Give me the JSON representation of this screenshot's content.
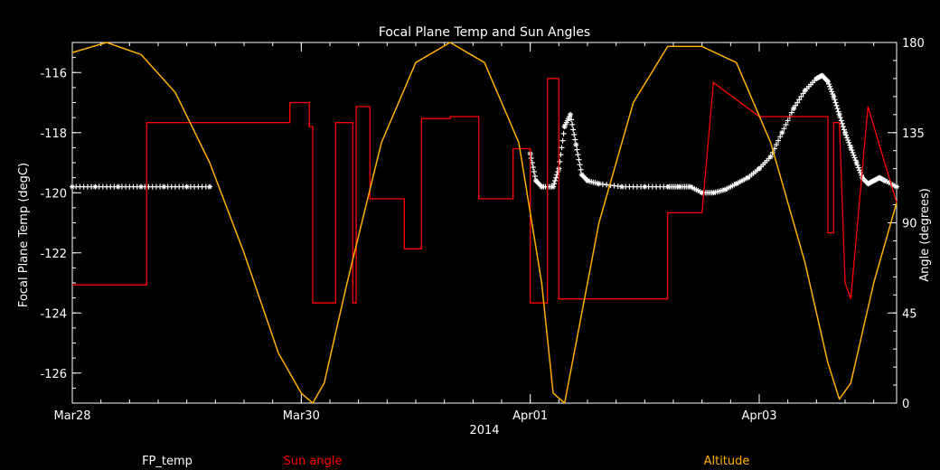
{
  "chart_data": {
    "type": "line",
    "title": "Focal Plane Temp and Sun Angles",
    "xlabel": "2014",
    "x_ticks": [
      "Mar28",
      "Mar30",
      "Apr01",
      "Apr03"
    ],
    "ylabel_left": "Focal Plane Temp (degC)",
    "ylabel_right": "Angle (degrees)",
    "x_range_days": [
      0,
      7.2
    ],
    "ylim_left": [
      -127,
      -115
    ],
    "ylim_right": [
      0,
      180
    ],
    "yticks_left": [
      "-116",
      "-118",
      "-120",
      "-122",
      "-124",
      "-126"
    ],
    "yticks_right": [
      "180",
      "135",
      "90",
      "45",
      "0"
    ],
    "legend": [
      "FP_temp",
      "Sun angle",
      "Altitude"
    ],
    "colors": {
      "fp_temp": "#ffffff",
      "sun_angle": "#ff0000",
      "altitude": "#ffb000",
      "axes": "#ffffff",
      "background": "#000000"
    },
    "series": [
      {
        "name": "FP_temp",
        "axis": "left",
        "style": "markers",
        "x": [
          0.0,
          0.2,
          0.4,
          0.6,
          0.8,
          1.0,
          1.2,
          4.0,
          4.05,
          4.1,
          4.2,
          4.25,
          4.3,
          4.35,
          4.4,
          4.45,
          4.5,
          4.6,
          4.8,
          5.0,
          5.2,
          5.3,
          5.4,
          5.5,
          5.6,
          5.7,
          5.8,
          5.9,
          6.0,
          6.1,
          6.2,
          6.3,
          6.4,
          6.5,
          6.55,
          6.6,
          6.65,
          6.7,
          6.75,
          6.8,
          6.85,
          6.9,
          6.95,
          7.0,
          7.05,
          7.1,
          7.2
        ],
        "y": [
          -119.8,
          -119.8,
          -119.8,
          -119.8,
          -119.8,
          -119.8,
          -119.8,
          -118.7,
          -119.6,
          -119.8,
          -119.8,
          -119.2,
          -117.8,
          -117.4,
          -118.4,
          -119.4,
          -119.6,
          -119.7,
          -119.8,
          -119.8,
          -119.8,
          -119.8,
          -119.8,
          -120.0,
          -120.0,
          -119.9,
          -119.7,
          -119.5,
          -119.2,
          -118.8,
          -118.0,
          -117.2,
          -116.6,
          -116.2,
          -116.1,
          -116.3,
          -116.8,
          -117.4,
          -118.0,
          -118.5,
          -119.0,
          -119.5,
          -119.7,
          -119.6,
          -119.5,
          -119.6,
          -119.8
        ]
      },
      {
        "name": "Sun angle",
        "axis": "right",
        "style": "step",
        "x": [
          0.0,
          0.65,
          0.65,
          1.0,
          1.3,
          1.3,
          1.9,
          1.9,
          2.07,
          2.07,
          2.1,
          2.1,
          2.15,
          2.3,
          2.3,
          2.45,
          2.45,
          2.48,
          2.48,
          2.6,
          2.6,
          2.75,
          2.9,
          2.9,
          3.0,
          3.05,
          3.05,
          3.2,
          3.3,
          3.3,
          3.55,
          3.55,
          3.85,
          3.85,
          4.0,
          4.0,
          4.15,
          4.15,
          4.25,
          4.25,
          4.35,
          4.35,
          4.45,
          4.45,
          4.75,
          5.2,
          5.2,
          5.5,
          5.5,
          5.6,
          5.6,
          6.0,
          6.15,
          6.15,
          6.6,
          6.6,
          6.65,
          6.65,
          6.7,
          6.75,
          6.75,
          6.8,
          6.8,
          6.95,
          6.95,
          7.2
        ],
        "y": [
          59,
          59,
          140,
          140,
          140,
          140,
          140,
          150,
          150,
          138,
          138,
          50,
          50,
          50,
          140,
          140,
          50,
          50,
          148,
          148,
          102,
          102,
          102,
          77,
          77,
          77,
          142,
          142,
          142,
          143,
          143,
          102,
          102,
          127,
          127,
          50,
          50,
          162,
          162,
          52,
          52,
          52,
          52,
          52,
          52,
          52,
          95,
          95,
          95,
          160,
          160,
          143,
          143,
          143,
          143,
          85,
          85,
          140,
          140,
          60,
          60,
          52,
          52,
          148,
          148,
          100
        ]
      },
      {
        "name": "Altitude",
        "axis": "right",
        "style": "line",
        "x": [
          0.0,
          0.3,
          0.6,
          0.9,
          1.2,
          1.5,
          1.8,
          2.0,
          2.1,
          2.2,
          2.4,
          2.7,
          3.0,
          3.3,
          3.6,
          3.9,
          4.1,
          4.2,
          4.3,
          4.6,
          4.9,
          5.2,
          5.5,
          5.8,
          6.1,
          6.4,
          6.6,
          6.7,
          6.8,
          7.0,
          7.2
        ],
        "y": [
          175,
          180,
          174,
          155,
          120,
          75,
          25,
          5,
          0,
          10,
          60,
          130,
          170,
          180,
          170,
          130,
          60,
          5,
          0,
          90,
          150,
          178,
          178,
          170,
          130,
          70,
          20,
          2,
          10,
          60,
          100
        ]
      }
    ]
  }
}
